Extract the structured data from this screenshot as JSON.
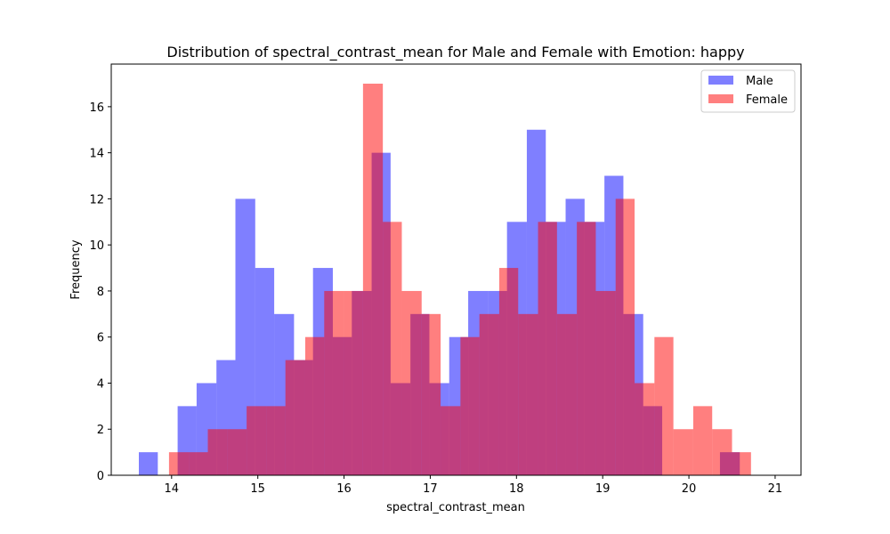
{
  "chart_data": {
    "type": "bar",
    "title": "Distribution of spectral_contrast_mean for Male and Female with Emotion: happy",
    "xlabel": "spectral_contrast_mean",
    "ylabel": "Frequency",
    "xlim": [
      13.3,
      21.3
    ],
    "ylim": [
      0,
      17.85
    ],
    "xticks": [
      14,
      15,
      16,
      17,
      18,
      19,
      20,
      21
    ],
    "yticks": [
      0,
      2,
      4,
      6,
      8,
      10,
      12,
      14,
      16
    ],
    "legend_position": "top-right",
    "series": [
      {
        "name": "Male",
        "color": "#0000ff",
        "opacity": 0.5,
        "bins": [
          [
            13.62,
            13.84,
            1
          ],
          [
            13.84,
            14.07,
            0
          ],
          [
            14.07,
            14.29,
            3
          ],
          [
            14.29,
            14.52,
            4
          ],
          [
            14.52,
            14.74,
            5
          ],
          [
            14.74,
            14.97,
            12
          ],
          [
            14.97,
            15.19,
            9
          ],
          [
            15.19,
            15.42,
            7
          ],
          [
            15.42,
            15.64,
            5
          ],
          [
            15.64,
            15.87,
            9
          ],
          [
            15.87,
            16.09,
            6
          ],
          [
            16.09,
            16.32,
            8
          ],
          [
            16.32,
            16.54,
            14
          ],
          [
            16.54,
            16.77,
            4
          ],
          [
            16.77,
            16.99,
            7
          ],
          [
            16.99,
            17.22,
            4
          ],
          [
            17.22,
            17.44,
            6
          ],
          [
            17.44,
            17.67,
            8
          ],
          [
            17.67,
            17.89,
            8
          ],
          [
            17.89,
            18.12,
            11
          ],
          [
            18.12,
            18.34,
            15
          ],
          [
            18.34,
            18.57,
            11
          ],
          [
            18.57,
            18.79,
            12
          ],
          [
            18.79,
            19.02,
            11
          ],
          [
            19.02,
            19.24,
            13
          ],
          [
            19.24,
            19.47,
            7
          ],
          [
            19.47,
            19.69,
            3
          ],
          [
            19.69,
            20.36,
            0
          ],
          [
            20.36,
            20.59,
            1
          ]
        ]
      },
      {
        "name": "Female",
        "color": "#ff0000",
        "opacity": 0.5,
        "bins": [
          [
            13.97,
            14.2,
            1
          ],
          [
            14.2,
            14.42,
            1
          ],
          [
            14.42,
            14.65,
            2
          ],
          [
            14.65,
            14.87,
            2
          ],
          [
            14.87,
            15.1,
            3
          ],
          [
            15.1,
            15.32,
            3
          ],
          [
            15.32,
            15.55,
            5
          ],
          [
            15.55,
            15.77,
            6
          ],
          [
            15.77,
            16.0,
            8
          ],
          [
            16.0,
            16.22,
            8
          ],
          [
            16.22,
            16.45,
            17
          ],
          [
            16.45,
            16.67,
            11
          ],
          [
            16.67,
            16.9,
            8
          ],
          [
            16.9,
            17.12,
            7
          ],
          [
            17.12,
            17.35,
            3
          ],
          [
            17.35,
            17.57,
            6
          ],
          [
            17.57,
            17.8,
            7
          ],
          [
            17.8,
            18.02,
            9
          ],
          [
            18.02,
            18.25,
            7
          ],
          [
            18.25,
            18.47,
            11
          ],
          [
            18.47,
            18.7,
            7
          ],
          [
            18.7,
            18.92,
            11
          ],
          [
            18.92,
            19.15,
            8
          ],
          [
            19.15,
            19.37,
            12
          ],
          [
            19.37,
            19.6,
            4
          ],
          [
            19.6,
            19.82,
            6
          ],
          [
            19.82,
            20.05,
            2
          ],
          [
            20.05,
            20.27,
            3
          ],
          [
            20.27,
            20.5,
            2
          ],
          [
            20.5,
            20.72,
            1
          ]
        ]
      }
    ]
  }
}
